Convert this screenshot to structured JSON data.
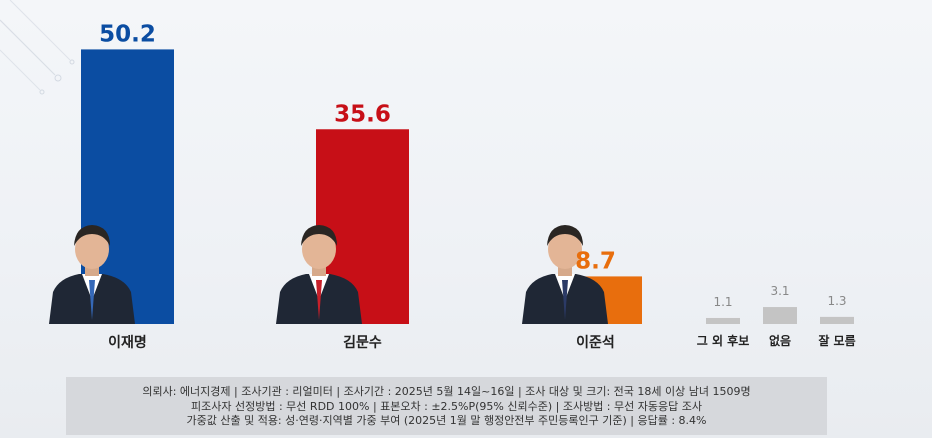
{
  "chart_data": {
    "type": "bar",
    "categories": [
      "이재명",
      "김문수",
      "이준석",
      "그 외 후보",
      "없음",
      "잘 모름"
    ],
    "values": [
      50.2,
      35.6,
      8.7,
      1.1,
      3.1,
      1.3
    ],
    "colors": [
      "#0b4da2",
      "#c70f17",
      "#e86e0d",
      "#c4c4c4",
      "#c4c4c4",
      "#c4c4c4"
    ],
    "value_colors": [
      "#0b4da2",
      "#c70f17",
      "#e86e0d",
      "#888888",
      "#888888",
      "#888888"
    ],
    "photos": [
      "candidate-photo-lee-jae-myung",
      "candidate-photo-kim-moon-soo",
      "candidate-photo-lee-jun-seok"
    ],
    "ylim": [
      0,
      55
    ],
    "grid": false,
    "legend": "none"
  },
  "footer": {
    "line1": "의뢰사: 에너지경제 | 조사기관 : 리얼미터  |  조사기간 : 2025년 5월 14일~16일 | 조사 대상 및 크기: 전국 18세 이상 남녀 1509명",
    "line2": "피조사자 선정방법 : 무선 RDD 100% | 표본오차 : ±2.5%P(95% 신뢰수준) | 조사방법 : 무선 자동응답 조사",
    "line3": "가중값 산출 및 적용: 성·연령·지역별 가중 부여 (2025년 1월 말 행정안전부 주민등록인구 기준) | 응답률 : 8.4%"
  }
}
